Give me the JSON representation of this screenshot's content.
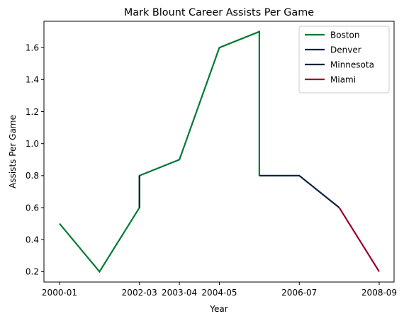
{
  "chart_data": {
    "type": "line",
    "title": "Mark Blount Career Assists Per Game",
    "xlabel": "Year",
    "ylabel": "Assists Per Game",
    "x_tick_labels": [
      "2000-01",
      "2002-03",
      "2003-04",
      "2004-05",
      "2006-07",
      "2008-09"
    ],
    "y_tick_labels": [
      "0.2",
      "0.4",
      "0.6",
      "0.8",
      "1.0",
      "1.2",
      "1.4",
      "1.6"
    ],
    "y_ticks": [
      0.2,
      0.4,
      0.6,
      0.8,
      1.0,
      1.2,
      1.4,
      1.6
    ],
    "ylim": [
      0.135,
      1.765
    ],
    "grid": false,
    "legend_position": "top-right",
    "series": [
      {
        "name": "Boston",
        "color": "#007A33",
        "points": [
          {
            "x": "2000-01",
            "y": 0.5
          },
          {
            "x": "2001-02",
            "y": 0.2
          },
          {
            "x": "2002-03",
            "y": 0.6
          },
          {
            "x": "2002-03",
            "y": 0.8
          },
          {
            "x": "2003-04",
            "y": 0.9
          },
          {
            "x": "2004-05",
            "y": 1.6
          },
          {
            "x": "2005-06",
            "y": 1.7
          },
          {
            "x": "2005-06",
            "y": 0.8
          }
        ]
      },
      {
        "name": "Denver",
        "color": "#0E2240",
        "points": [
          {
            "x": "2002-03",
            "y": 0.6
          },
          {
            "x": "2002-03",
            "y": 0.8
          }
        ]
      },
      {
        "name": "Minnesota",
        "color": "#0C2340",
        "points": [
          {
            "x": "2005-06",
            "y": 0.8
          },
          {
            "x": "2006-07",
            "y": 0.8
          },
          {
            "x": "2007-08",
            "y": 0.6
          }
        ]
      },
      {
        "name": "Miami",
        "color": "#98002E",
        "points": [
          {
            "x": "2007-08",
            "y": 0.6
          },
          {
            "x": "2008-09",
            "y": 0.2
          }
        ]
      }
    ]
  }
}
